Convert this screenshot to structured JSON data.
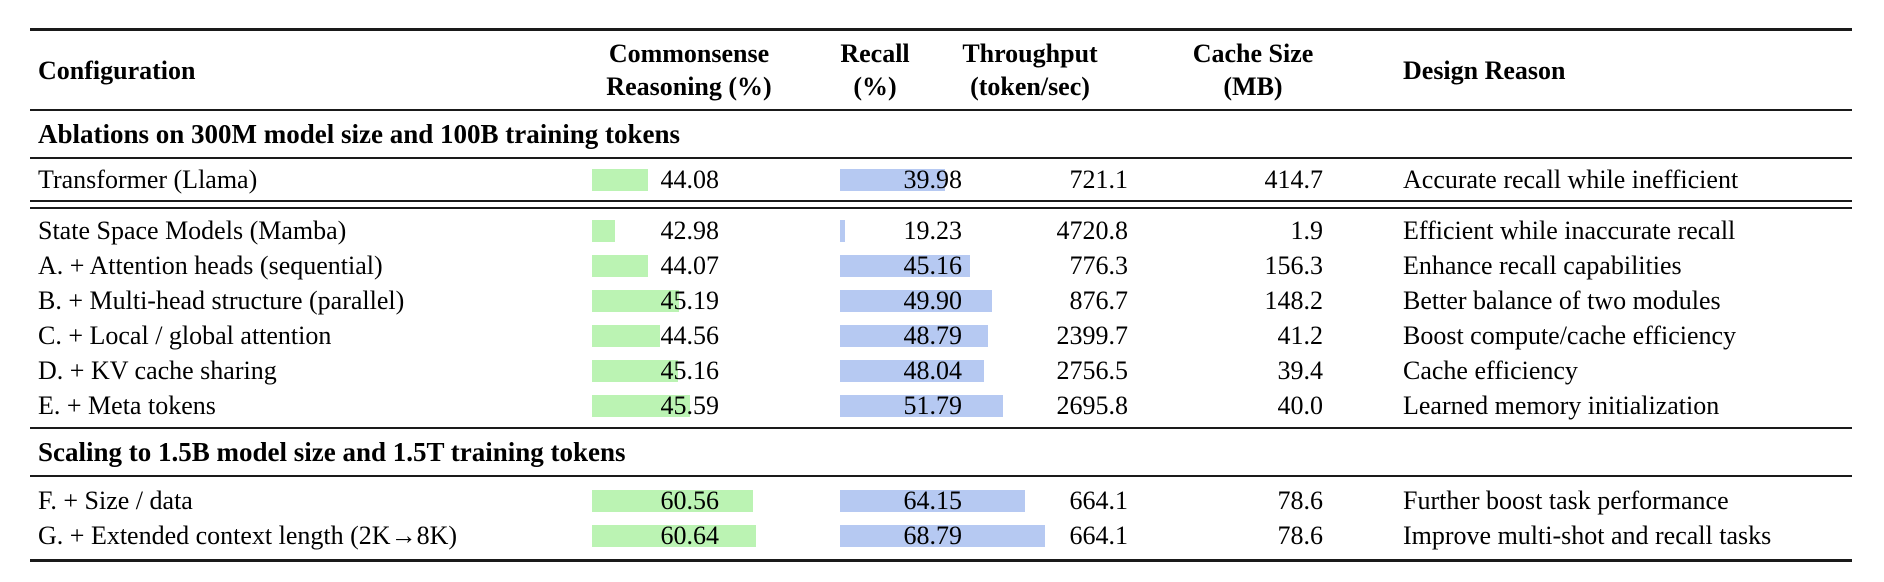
{
  "header": {
    "config": "Configuration",
    "commonsense": [
      "Commonsense",
      "Reasoning (%)"
    ],
    "recall": [
      "Recall",
      "(%)"
    ],
    "throughput": [
      "Throughput",
      "(token/sec)"
    ],
    "cache": [
      "Cache Size",
      "(MB)"
    ],
    "reason": "Design Reason"
  },
  "colors": {
    "commonsense_bar": "#bbf3b3",
    "recall_bar": "#b6c9f2",
    "rule": "#1a1a1a"
  },
  "table": {
    "sections": [
      {
        "title": "Ablations on 300M model size and 100B training tokens",
        "groups": [
          {
            "rows": [
              {
                "config": "Transformer (Llama)",
                "cr": "44.08",
                "cr_bar": 56,
                "recall": "39.98",
                "recall_bar": 105,
                "throughput": "721.1",
                "cache": "414.7",
                "reason": "Accurate recall while inefficient"
              }
            ]
          },
          {
            "rows": [
              {
                "config": "State Space Models (Mamba)",
                "cr": "42.98",
                "cr_bar": 23,
                "recall": "19.23",
                "recall_bar": 5,
                "throughput": "4720.8",
                "cache": "1.9",
                "reason": "Efficient while inaccurate recall"
              },
              {
                "config": "A. + Attention heads (sequential)",
                "cr": "44.07",
                "cr_bar": 56,
                "recall": "45.16",
                "recall_bar": 130,
                "throughput": "776.3",
                "cache": "156.3",
                "reason": "Enhance recall capabilities"
              },
              {
                "config": "B. + Multi-head structure (parallel)",
                "cr": "45.19",
                "cr_bar": 87,
                "recall": "49.90",
                "recall_bar": 152,
                "throughput": "876.7",
                "cache": "148.2",
                "reason": "Better balance of two modules"
              },
              {
                "config": "C. + Local / global attention",
                "cr": "44.56",
                "cr_bar": 68,
                "recall": "48.79",
                "recall_bar": 148,
                "throughput": "2399.7",
                "cache": "41.2",
                "reason": "Boost compute/cache efficiency"
              },
              {
                "config": "D. + KV cache sharing",
                "cr": "45.16",
                "cr_bar": 86,
                "recall": "48.04",
                "recall_bar": 144,
                "throughput": "2756.5",
                "cache": "39.4",
                "reason": "Cache efficiency"
              },
              {
                "config": "E. + Meta tokens",
                "cr": "45.59",
                "cr_bar": 98,
                "recall": "51.79",
                "recall_bar": 163,
                "throughput": "2695.8",
                "cache": "40.0",
                "reason": "Learned memory initialization"
              }
            ]
          }
        ]
      },
      {
        "title": "Scaling to 1.5B model size and 1.5T training tokens",
        "groups": [
          {
            "rows": [
              {
                "config": "F. + Size / data",
                "cr": "60.56",
                "cr_bar": 161,
                "recall": "64.15",
                "recall_bar": 185,
                "throughput": "664.1",
                "cache": "78.6",
                "reason": "Further boost task performance"
              },
              {
                "config": "G. + Extended context length (2K→8K)",
                "cr": "60.64",
                "cr_bar": 164,
                "recall": "68.79",
                "recall_bar": 205,
                "throughput": "664.1",
                "cache": "78.6",
                "reason": "Improve multi-shot and recall tasks"
              }
            ]
          }
        ]
      }
    ]
  }
}
